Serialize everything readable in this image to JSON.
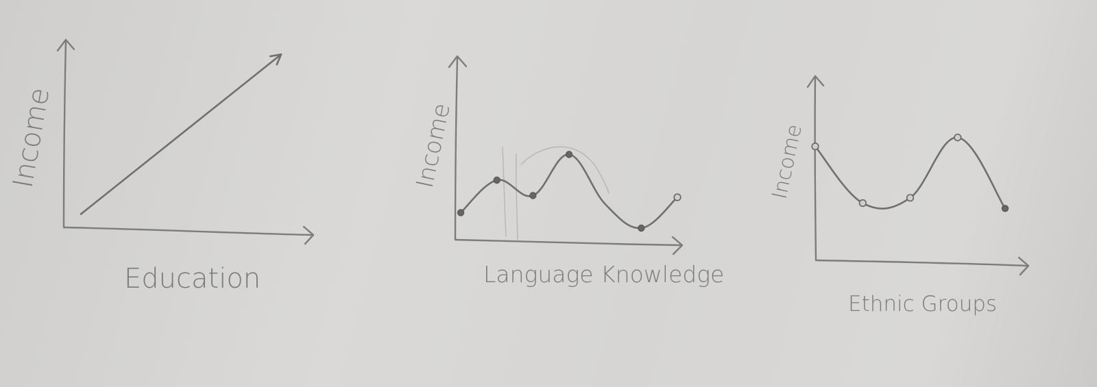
{
  "chart_data": [
    {
      "type": "line",
      "title": "",
      "xlabel": "Education",
      "ylabel": "Income",
      "x": [
        0,
        1
      ],
      "values": [
        0.08,
        0.95
      ],
      "ylim": [
        0,
        1
      ],
      "grid": false,
      "arrow_end": true
    },
    {
      "type": "line",
      "title": "",
      "xlabel": "Language Knowledge",
      "ylabel": "Income",
      "x": [
        0,
        1,
        2,
        3,
        4,
        5,
        6
      ],
      "values": [
        0.17,
        0.36,
        0.27,
        0.51,
        0.22,
        0.08,
        0.26
      ],
      "points": [
        {
          "x": 0,
          "y": 0.17,
          "style": "filled"
        },
        {
          "x": 1,
          "y": 0.36,
          "style": "filled"
        },
        {
          "x": 2,
          "y": 0.27,
          "style": "filled"
        },
        {
          "x": 3,
          "y": 0.51,
          "style": "filled"
        },
        {
          "x": 4,
          "y": 0.22,
          "style": "none"
        },
        {
          "x": 5,
          "y": 0.08,
          "style": "filled"
        },
        {
          "x": 6,
          "y": 0.26,
          "style": "hollow"
        }
      ],
      "ylim": [
        0,
        1
      ],
      "grid": false
    },
    {
      "type": "line",
      "title": "",
      "xlabel": "Ethnic Groups",
      "ylabel": "Income",
      "x": [
        0,
        1,
        2,
        3,
        4
      ],
      "values": [
        0.65,
        0.33,
        0.36,
        0.7,
        0.3
      ],
      "points": [
        {
          "x": 0,
          "y": 0.65,
          "style": "hollow"
        },
        {
          "x": 1,
          "y": 0.33,
          "style": "hollow"
        },
        {
          "x": 2,
          "y": 0.36,
          "style": "hollow"
        },
        {
          "x": 3,
          "y": 0.7,
          "style": "hollow"
        },
        {
          "x": 4,
          "y": 0.3,
          "style": "filled"
        }
      ],
      "ylim": [
        0,
        1
      ],
      "grid": false
    }
  ]
}
